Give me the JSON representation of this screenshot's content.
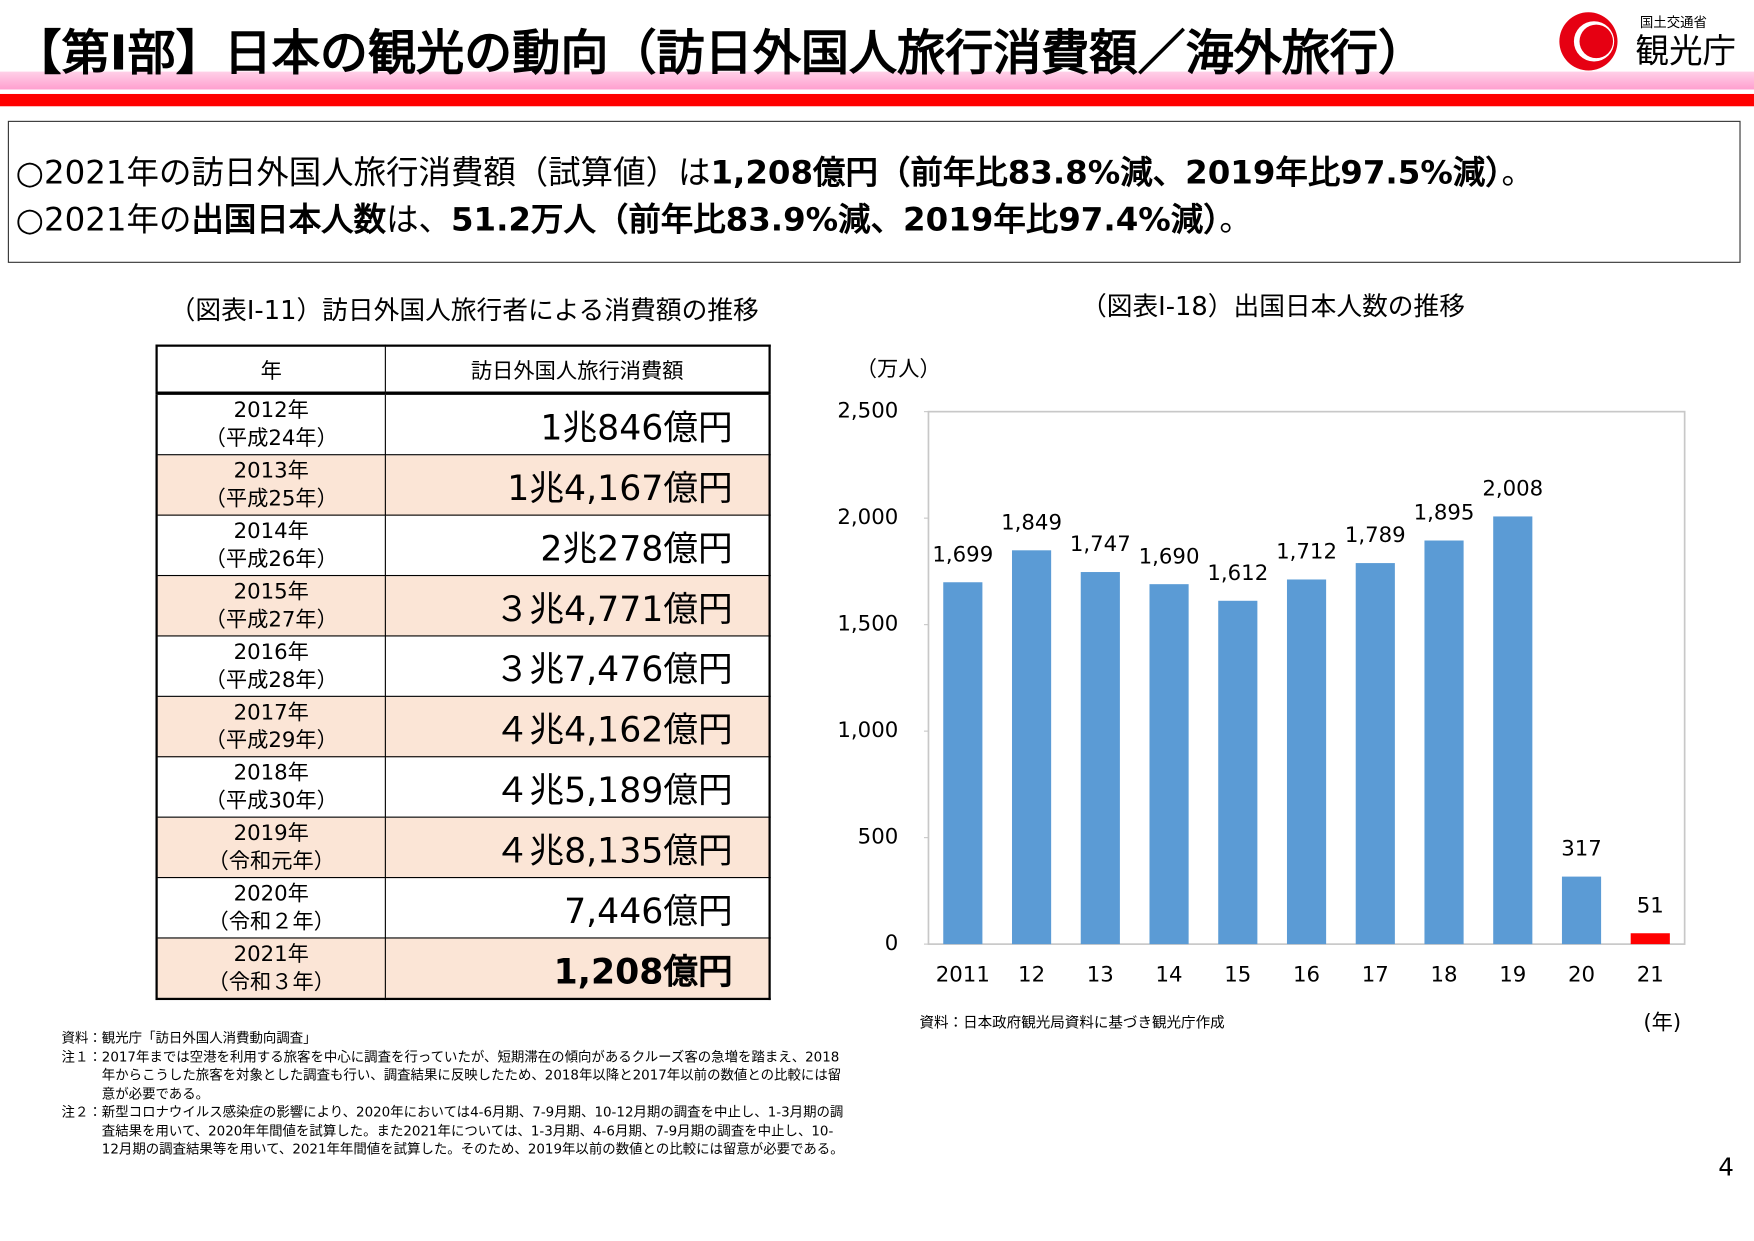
{
  "header": {
    "title": "【第Ⅰ部】日本の観光の動向（訪日外国人旅行消費額／海外旅行）",
    "logo_ministry": "国土交通省",
    "logo_agency": "観光庁"
  },
  "summary": {
    "lines": [
      {
        "segments": [
          {
            "text": "○2021年の訪日外国人旅行消費額（試算値）は",
            "bold": false
          },
          {
            "text": "1,208億円（前年比83.8%減、2019年比97.5%減）",
            "bold": true
          },
          {
            "text": "。",
            "bold": false
          }
        ]
      },
      {
        "segments": [
          {
            "text": "○2021年の",
            "bold": false
          },
          {
            "text": "出国日本人数",
            "bold": true
          },
          {
            "text": "は、",
            "bold": false
          },
          {
            "text": "51.2万人（前年比83.9%減、2019年比97.4%減）",
            "bold": true
          },
          {
            "text": "。",
            "bold": false
          }
        ]
      }
    ]
  },
  "table": {
    "caption": "（図表Ⅰ-11）訪日外国人旅行者による消費額の推移",
    "header": [
      "年",
      "訪日外国人旅行消費額"
    ],
    "rows": [
      [
        "2012年",
        "（平成24年）",
        "1兆846億円"
      ],
      [
        "2013年",
        "（平成25年）",
        "1兆4,167億円"
      ],
      [
        "2014年",
        "（平成26年）",
        "2兆278億円"
      ],
      [
        "2015年",
        "（平成27年）",
        "３兆4,771億円"
      ],
      [
        "2016年",
        "（平成28年）",
        "３兆7,476億円"
      ],
      [
        "2017年",
        "（平成29年）",
        "４兆4,162億円"
      ],
      [
        "2018年",
        "（平成30年）",
        "４兆5,189億円"
      ],
      [
        "2019年",
        "（令和元年）",
        "４兆8,135億円"
      ],
      [
        "2020年",
        "（令和２年）",
        "7,446億円"
      ],
      [
        "2021年",
        "（令和３年）",
        "1,208億円"
      ]
    ]
  },
  "chart_data": {
    "type": "bar",
    "title": "（図表Ⅰ-18）出国日本人数の推移",
    "y_label": "（万人）",
    "x_label": "(年)",
    "categories": [
      "2011",
      "12",
      "13",
      "14",
      "15",
      "16",
      "17",
      "18",
      "19",
      "20",
      "21"
    ],
    "values": [
      1699,
      1849,
      1747,
      1690,
      1612,
      1712,
      1789,
      1895,
      2008,
      317,
      51
    ],
    "value_labels": [
      "1,699",
      "1,849",
      "1,747",
      "1,690",
      "1,612",
      "1,712",
      "1,789",
      "1,895",
      "2,008",
      "317",
      "51"
    ],
    "colors": [
      "#5b9bd5",
      "#5b9bd5",
      "#5b9bd5",
      "#5b9bd5",
      "#5b9bd5",
      "#5b9bd5",
      "#5b9bd5",
      "#5b9bd5",
      "#5b9bd5",
      "#5b9bd5",
      "#ff0000"
    ],
    "ylim": [
      0,
      2500
    ],
    "yticks": [
      0,
      500,
      {
        "value": 1000,
        "label": "1,000"
      },
      {
        "value": 1500,
        "label": "1,500"
      },
      {
        "value": 2000,
        "label": "2,000"
      },
      {
        "value": 2500,
        "label": "2,500"
      }
    ],
    "grid": false,
    "source": "資料：日本政府観光局資料に基づき観光庁作成"
  },
  "notes": [
    {
      "label": "資料：",
      "text": "観光庁「訪日外国人消費動向調査」"
    },
    {
      "label": "注１：",
      "text": "2017年までは空港を利用する旅客を中心に調査を行っていたが、短期滞在の傾向があるクルーズ客の急増を踏まえ、2018年からこうした旅客を対象とした調査も行い、調査結果に反映したため、2018年以降と2017年以前の数値との比較には留意が必要である。"
    },
    {
      "label": "注２：",
      "text": "新型コロナウイルス感染症の影響により、2020年においては4-6月期、7-9月期、10-12月期の調査を中止し、1-3月期の調査結果を用いて、2020年年間値を試算した。また2021年については、1-3月期、4-6月期、7-9月期の調査を中止し、10-12月期の調査結果等を用いて、2021年年間値を試算した。そのため、2019年以前の数値との比較には留意が必要である。"
    }
  ],
  "page_number": "4"
}
